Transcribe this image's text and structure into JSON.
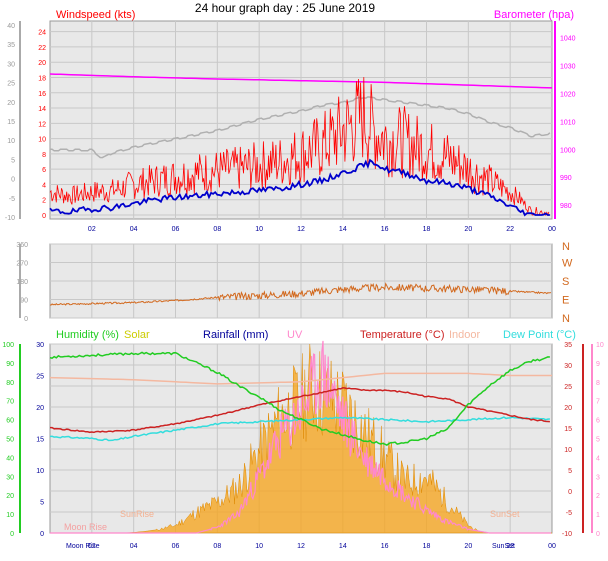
{
  "title": "24 hour graph day : 25 June 2019",
  "colors": {
    "wind": "#ff0000",
    "gust_avg": "#0000cc",
    "baro": "#ff00ff",
    "baro_gray": "#b0b0b0",
    "dir": "#d2691e",
    "humidity": "#22cc22",
    "solar": "#f5a623",
    "solar_label": "#cccc00",
    "rain": "#000099",
    "uv": "#ff88cc",
    "temp": "#cc2222",
    "indoor": "#f4b8a0",
    "dew": "#33dddd",
    "plot_bg": "#e8e8e8",
    "grid": "#c8c8c8"
  },
  "chart_data": [
    {
      "id": "wind",
      "type": "line",
      "labels": {
        "left": "Windspeed (kts)",
        "right": "Barometer (hpa)"
      },
      "x_ticks": [
        "02",
        "04",
        "06",
        "08",
        "10",
        "12",
        "14",
        "16",
        "18",
        "20",
        "22",
        "00"
      ],
      "left_axis_outer": [
        "-10",
        "-5",
        "0",
        "5",
        "10",
        "15",
        "20",
        "25",
        "30",
        "35",
        "40"
      ],
      "left_axis_inner": [
        "0",
        "2",
        "4",
        "6",
        "8",
        "10",
        "12",
        "14",
        "16",
        "18",
        "20",
        "22",
        "24"
      ],
      "right_axis": [
        "980",
        "990",
        "1000",
        "1010",
        "1020",
        "1030",
        "1040"
      ],
      "ylim_kts": [
        0,
        25
      ],
      "ylim_hpa": [
        975,
        1046
      ],
      "series": [
        {
          "key": "barometer",
          "unit": "hpa",
          "x": [
            0,
            2,
            4,
            6,
            8,
            10,
            12,
            14,
            16,
            18,
            20,
            22,
            24
          ],
          "y": [
            1027,
            1026.5,
            1026,
            1025.6,
            1025.2,
            1024.9,
            1024.6,
            1024.3,
            1024,
            1023.5,
            1023,
            1022.5,
            1022
          ]
        },
        {
          "key": "gray",
          "unit": "hpa",
          "x": [
            0,
            2,
            2.5,
            3,
            4,
            6,
            8,
            10,
            12,
            13,
            14,
            15,
            16,
            17,
            18,
            19,
            20,
            21,
            22,
            23,
            24
          ],
          "y": [
            1000,
            1000,
            997,
            999,
            1001,
            1004,
            1007,
            1011,
            1014,
            1016,
            1017,
            1019,
            1018,
            1017,
            1016,
            1015,
            1013,
            1010,
            1008,
            1005,
            1006
          ]
        },
        {
          "key": "wind",
          "unit": "kts",
          "x": [
            0,
            1,
            2,
            3,
            4,
            5,
            6,
            7,
            8,
            9,
            10,
            11,
            12,
            13,
            14,
            14.5,
            15,
            15.5,
            16,
            17,
            18,
            19,
            20,
            21,
            22,
            22.5,
            23,
            24
          ],
          "y": [
            3,
            2.5,
            3,
            3.2,
            4,
            4.5,
            5,
            5.5,
            5.8,
            6,
            6.5,
            7,
            8,
            9,
            11,
            12,
            13,
            11,
            10,
            9.5,
            8.5,
            7.5,
            6,
            4.5,
            3,
            2,
            0.5,
            0.3
          ]
        },
        {
          "key": "avg",
          "unit": "kts",
          "x": [
            0,
            1,
            2,
            3,
            4,
            5,
            6,
            7,
            8,
            9,
            10,
            11,
            12,
            13,
            14,
            15,
            15.5,
            16,
            17,
            18,
            19,
            20,
            21,
            22,
            22.5,
            23,
            24
          ],
          "y": [
            0.5,
            0.4,
            0.8,
            1,
            1.5,
            2,
            2.3,
            2.5,
            2.8,
            3,
            3.2,
            3.5,
            4,
            4.5,
            5.5,
            6.5,
            7,
            6,
            5.5,
            4.5,
            4.2,
            3.5,
            2.5,
            1.2,
            0.5,
            0,
            0
          ]
        }
      ]
    },
    {
      "id": "direction",
      "type": "line",
      "x_ticks": [
        "02",
        "04",
        "06",
        "08",
        "10",
        "12",
        "14",
        "16",
        "18",
        "20",
        "22",
        "00"
      ],
      "left_axis": [
        "0",
        "90",
        "180",
        "270",
        "360"
      ],
      "right_axis": [
        "N",
        "W",
        "S",
        "E",
        "N"
      ],
      "ylim": [
        0,
        360
      ],
      "series": [
        {
          "key": "dir",
          "x": [
            0,
            2,
            4,
            6,
            8,
            10,
            12,
            14,
            16,
            18,
            20,
            22,
            24
          ],
          "y": [
            65,
            70,
            75,
            85,
            100,
            110,
            120,
            140,
            150,
            145,
            140,
            130,
            120
          ]
        }
      ]
    },
    {
      "id": "temp_hum",
      "type": "area",
      "labels": [
        "Humidity (%)",
        "Solar",
        "Rainfall (mm)",
        "UV",
        "Temperature (°C)",
        "Indoor",
        "Dew Point (°C)"
      ],
      "bottom_labels": [
        "Moon Rise",
        "SunRise",
        "SunSet"
      ],
      "x_ticks": [
        "02",
        "04",
        "06",
        "08",
        "10",
        "12",
        "14",
        "16",
        "18",
        "20",
        "22",
        "00"
      ],
      "hum_axis": [
        "0",
        "10",
        "20",
        "30",
        "40",
        "50",
        "60",
        "70",
        "80",
        "90",
        "100"
      ],
      "rain_axis": [
        "0",
        "5",
        "10",
        "15",
        "20",
        "25",
        "30"
      ],
      "temp_axis": [
        "-10",
        "-5",
        "0",
        "5",
        "10",
        "15",
        "20",
        "25",
        "30",
        "35"
      ],
      "uv_axis": [
        "0",
        "1",
        "2",
        "3",
        "4",
        "5",
        "6",
        "7",
        "8",
        "9",
        "10"
      ],
      "ylim_temp": [
        -10,
        35
      ],
      "series": [
        {
          "key": "humidity",
          "unit": "%",
          "x": [
            0,
            2,
            4,
            6,
            8,
            9,
            10,
            11,
            12,
            13,
            14,
            15,
            16,
            17,
            18,
            19,
            20,
            21,
            22,
            23,
            24
          ],
          "y": [
            93,
            94,
            95,
            95,
            85,
            78,
            72,
            65,
            60,
            55,
            52,
            49,
            47,
            48,
            50,
            55,
            68,
            78,
            86,
            91,
            93
          ]
        },
        {
          "key": "temperature",
          "unit": "°C",
          "x": [
            0,
            2,
            4,
            6,
            8,
            10,
            12,
            13,
            14,
            15,
            16,
            17,
            18,
            19,
            20,
            21,
            22,
            23,
            24
          ],
          "y": [
            15,
            14,
            14.5,
            16,
            18,
            20.5,
            22.5,
            23.5,
            24.5,
            24,
            24,
            23.5,
            22.5,
            22,
            20,
            19,
            18,
            17,
            16.5
          ]
        },
        {
          "key": "indoor",
          "unit": "°C",
          "x": [
            0,
            4,
            8,
            12,
            14,
            16,
            18,
            20,
            22,
            24
          ],
          "y": [
            27,
            26.5,
            25.5,
            26,
            27,
            28,
            28,
            28,
            27.5,
            27.5
          ]
        },
        {
          "key": "dew",
          "unit": "°C",
          "x": [
            0,
            2,
            3,
            4,
            6,
            8,
            10,
            12,
            14,
            16,
            18,
            20,
            22,
            24
          ],
          "y": [
            13,
            12.5,
            12,
            13,
            14.5,
            16,
            16.5,
            17,
            17.5,
            17,
            16.5,
            17,
            17.5,
            17
          ]
        },
        {
          "key": "solar",
          "unit": "rel",
          "x": [
            0,
            3.5,
            4,
            4.5,
            5,
            6,
            7,
            8,
            9,
            10,
            11,
            12,
            12.5,
            13,
            14,
            15,
            16,
            17,
            18,
            19,
            20,
            20.5,
            21,
            24
          ],
          "y": [
            0,
            0,
            0.2,
            0.5,
            1,
            3,
            8,
            12,
            18,
            32,
            45,
            52,
            58,
            55,
            50,
            40,
            30,
            20,
            22,
            12,
            3,
            0.5,
            0,
            0
          ]
        },
        {
          "key": "uv",
          "unit": "index",
          "x": [
            0,
            7,
            8,
            9,
            10,
            11,
            12,
            12.5,
            13,
            13.5,
            14,
            15,
            16,
            17,
            18,
            19,
            20,
            21
          ],
          "y": [
            0,
            0,
            0.3,
            1,
            3,
            5,
            6.5,
            7.5,
            8.5,
            7.5,
            6,
            4,
            3,
            2,
            1.2,
            0.6,
            0.2,
            0
          ]
        }
      ]
    }
  ]
}
